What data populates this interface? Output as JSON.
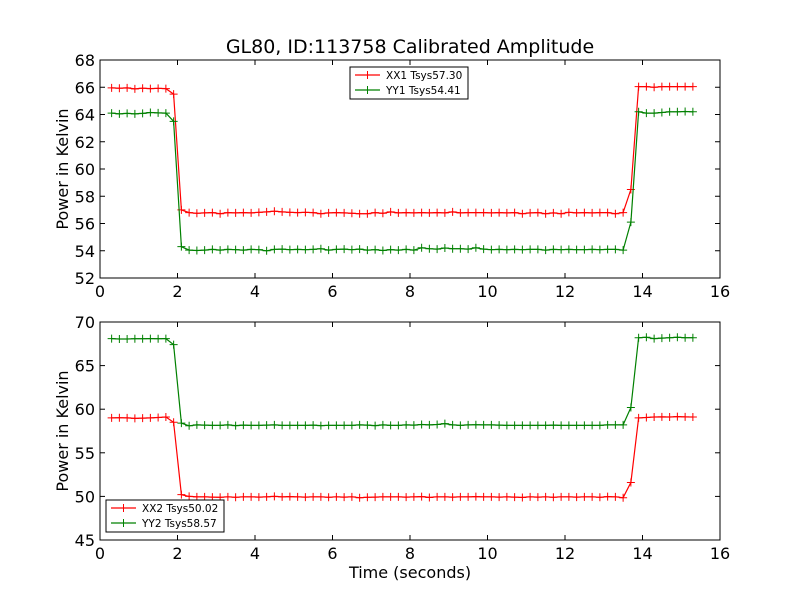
{
  "title": "GL80, ID:113758 Calibrated Amplitude",
  "colors": {
    "xx": "#ff0000",
    "yy": "#008000"
  },
  "chart_data": [
    {
      "type": "line",
      "ylabel": "Power in Kelvin",
      "xlabel": "",
      "xlim": [
        0,
        16
      ],
      "ylim": [
        52,
        68
      ],
      "xticks": [
        0,
        2,
        4,
        6,
        8,
        10,
        12,
        14,
        16
      ],
      "yticks": [
        52,
        54,
        56,
        58,
        60,
        62,
        64,
        66,
        68
      ],
      "legend_position": "upper center",
      "x": [
        0.3,
        0.5,
        0.7,
        0.9,
        1.1,
        1.3,
        1.5,
        1.7,
        1.9,
        2.1,
        2.3,
        2.5,
        2.7,
        2.9,
        3.1,
        3.3,
        3.5,
        3.7,
        3.9,
        4.1,
        4.3,
        4.5,
        4.7,
        4.9,
        5.1,
        5.3,
        5.5,
        5.7,
        5.9,
        6.1,
        6.3,
        6.5,
        6.7,
        6.9,
        7.1,
        7.3,
        7.5,
        7.7,
        7.9,
        8.1,
        8.3,
        8.5,
        8.7,
        8.9,
        9.1,
        9.3,
        9.5,
        9.7,
        9.9,
        10.1,
        10.3,
        10.5,
        10.7,
        10.9,
        11.1,
        11.3,
        11.5,
        11.7,
        11.9,
        12.1,
        12.3,
        12.5,
        12.7,
        12.9,
        13.1,
        13.3,
        13.5,
        13.7,
        13.9,
        14.1,
        14.3,
        14.5,
        14.7,
        14.9,
        15.1,
        15.3
      ],
      "series": [
        {
          "name": "XX1 Tsys57.30",
          "color": "#ff0000",
          "values": [
            65.95,
            65.93,
            65.95,
            65.88,
            65.93,
            65.9,
            65.92,
            65.9,
            65.5,
            57.0,
            56.8,
            56.75,
            56.78,
            56.8,
            56.72,
            56.8,
            56.78,
            56.8,
            56.78,
            56.82,
            56.85,
            56.9,
            56.85,
            56.82,
            56.8,
            56.82,
            56.8,
            56.72,
            56.78,
            56.8,
            56.78,
            56.75,
            56.72,
            56.72,
            56.8,
            56.75,
            56.85,
            56.78,
            56.8,
            56.78,
            56.8,
            56.78,
            56.8,
            56.78,
            56.85,
            56.78,
            56.8,
            56.8,
            56.8,
            56.78,
            56.8,
            56.78,
            56.8,
            56.72,
            56.78,
            56.8,
            56.72,
            56.78,
            56.72,
            56.82,
            56.78,
            56.8,
            56.78,
            56.8,
            56.8,
            56.72,
            56.8,
            58.5,
            66.05,
            66.05,
            66.0,
            66.05,
            66.05,
            66.05,
            66.05,
            66.05
          ]
        },
        {
          "name": "YY1 Tsys54.41",
          "color": "#008000",
          "values": [
            64.1,
            64.05,
            64.08,
            64.05,
            64.08,
            64.15,
            64.12,
            64.1,
            63.5,
            54.3,
            54.05,
            54.02,
            54.05,
            54.1,
            54.05,
            54.1,
            54.08,
            54.05,
            54.1,
            54.08,
            54.0,
            54.1,
            54.12,
            54.08,
            54.1,
            54.08,
            54.1,
            54.15,
            54.05,
            54.1,
            54.12,
            54.08,
            54.12,
            54.05,
            54.08,
            54.02,
            54.08,
            54.05,
            54.1,
            54.05,
            54.22,
            54.15,
            54.12,
            54.2,
            54.15,
            54.15,
            54.12,
            54.22,
            54.12,
            54.08,
            54.1,
            54.08,
            54.1,
            54.08,
            54.1,
            54.1,
            54.05,
            54.1,
            54.08,
            54.1,
            54.08,
            54.08,
            54.1,
            54.08,
            54.1,
            54.1,
            54.05,
            56.1,
            64.2,
            64.1,
            64.1,
            64.15,
            64.2,
            64.2,
            64.22,
            64.2
          ]
        }
      ]
    },
    {
      "type": "line",
      "ylabel": "Power in Kelvin",
      "xlabel": "Time (seconds)",
      "xlim": [
        0,
        16
      ],
      "ylim": [
        45,
        70
      ],
      "xticks": [
        0,
        2,
        4,
        6,
        8,
        10,
        12,
        14,
        16
      ],
      "yticks": [
        45,
        50,
        55,
        60,
        65,
        70
      ],
      "legend_position": "lower left",
      "x": [
        0.3,
        0.5,
        0.7,
        0.9,
        1.1,
        1.3,
        1.5,
        1.7,
        1.9,
        2.1,
        2.3,
        2.5,
        2.7,
        2.9,
        3.1,
        3.3,
        3.5,
        3.7,
        3.9,
        4.1,
        4.3,
        4.5,
        4.7,
        4.9,
        5.1,
        5.3,
        5.5,
        5.7,
        5.9,
        6.1,
        6.3,
        6.5,
        6.7,
        6.9,
        7.1,
        7.3,
        7.5,
        7.7,
        7.9,
        8.1,
        8.3,
        8.5,
        8.7,
        8.9,
        9.1,
        9.3,
        9.5,
        9.7,
        9.9,
        10.1,
        10.3,
        10.5,
        10.7,
        10.9,
        11.1,
        11.3,
        11.5,
        11.7,
        11.9,
        12.1,
        12.3,
        12.5,
        12.7,
        12.9,
        13.1,
        13.3,
        13.5,
        13.7,
        13.9,
        14.1,
        14.3,
        14.5,
        14.7,
        14.9,
        15.1,
        15.3
      ],
      "series": [
        {
          "name": "XX2 Tsys50.02",
          "color": "#ff0000",
          "values": [
            59.0,
            59.02,
            59.0,
            58.95,
            58.98,
            59.0,
            59.05,
            59.1,
            58.5,
            50.2,
            50.0,
            49.95,
            49.95,
            49.92,
            49.9,
            49.95,
            49.9,
            49.95,
            49.95,
            49.92,
            49.95,
            50.0,
            49.95,
            49.98,
            49.95,
            49.92,
            49.95,
            49.95,
            49.9,
            49.95,
            49.92,
            49.95,
            49.85,
            49.9,
            49.92,
            49.95,
            49.95,
            49.95,
            49.92,
            49.95,
            49.98,
            49.88,
            49.95,
            49.95,
            49.92,
            49.95,
            49.95,
            49.98,
            49.95,
            49.95,
            49.92,
            49.95,
            49.92,
            49.88,
            49.95,
            49.92,
            49.95,
            49.9,
            49.95,
            49.95,
            49.92,
            49.95,
            49.95,
            49.9,
            49.98,
            49.95,
            49.85,
            51.6,
            59.0,
            59.05,
            59.1,
            59.12,
            59.1,
            59.15,
            59.12,
            59.1
          ]
        },
        {
          "name": "YY2 Tsys58.57",
          "color": "#008000",
          "values": [
            68.1,
            68.05,
            68.05,
            68.08,
            68.08,
            68.1,
            68.08,
            68.1,
            67.4,
            58.4,
            58.1,
            58.2,
            58.18,
            58.15,
            58.15,
            58.2,
            58.12,
            58.18,
            58.15,
            58.15,
            58.18,
            58.2,
            58.15,
            58.15,
            58.15,
            58.15,
            58.18,
            58.12,
            58.15,
            58.15,
            58.15,
            58.15,
            58.2,
            58.18,
            58.12,
            58.2,
            58.15,
            58.15,
            58.2,
            58.18,
            58.25,
            58.2,
            58.25,
            58.35,
            58.2,
            58.15,
            58.2,
            58.22,
            58.2,
            58.2,
            58.18,
            58.15,
            58.15,
            58.15,
            58.15,
            58.15,
            58.15,
            58.18,
            58.15,
            58.15,
            58.15,
            58.15,
            58.15,
            58.15,
            58.2,
            58.2,
            58.2,
            60.2,
            68.2,
            68.25,
            68.1,
            68.15,
            68.2,
            68.25,
            68.2,
            68.2
          ]
        }
      ]
    }
  ]
}
